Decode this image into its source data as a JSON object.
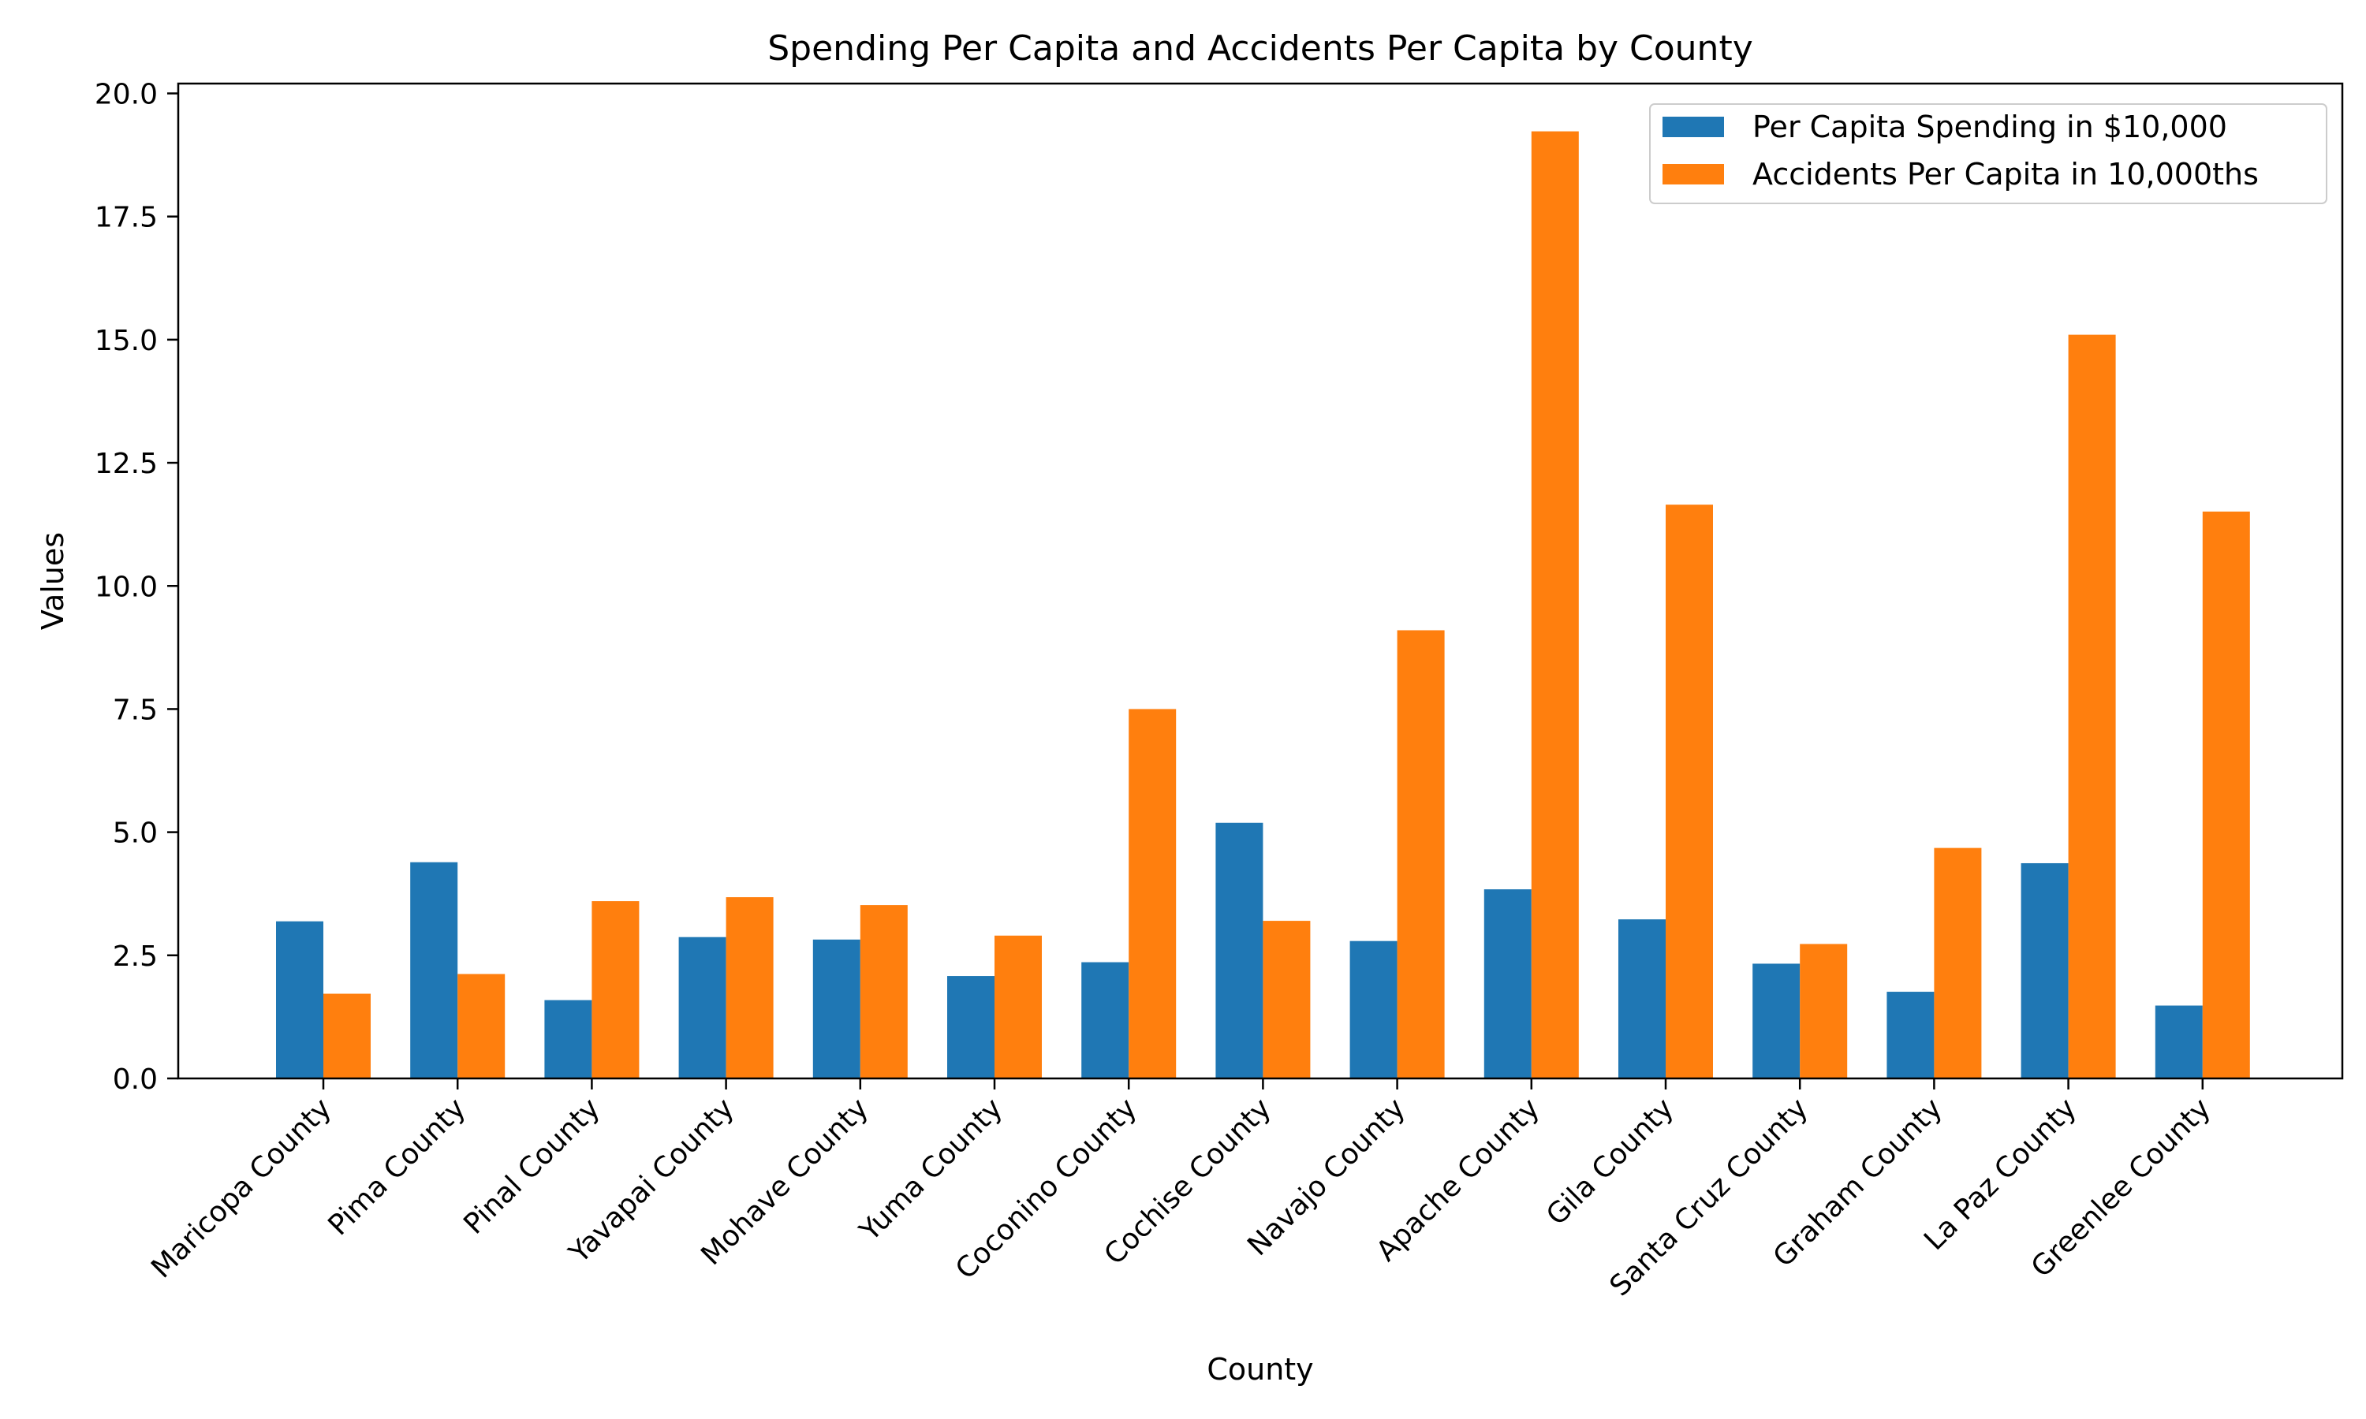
{
  "chart_data": {
    "type": "bar",
    "title": "Spending Per Capita and Accidents Per Capita by County",
    "xlabel": "County",
    "ylabel": "Values",
    "ylim": [
      0,
      20.2
    ],
    "yticks": [
      "0.0",
      "2.5",
      "5.0",
      "7.5",
      "10.0",
      "12.5",
      "15.0",
      "17.5",
      "20.0"
    ],
    "grid": false,
    "legend_position": "top-right",
    "categories": [
      "Maricopa County",
      "Pima County",
      "Pinal County",
      "Yavapai County",
      "Mohave County",
      "Yuma County",
      "Coconino County",
      "Cochise County",
      "Navajo County",
      "Apache County",
      "Gila County",
      "Santa Cruz County",
      "Graham County",
      "La Paz County",
      "Greenlee County"
    ],
    "series": [
      {
        "name": "Per Capita Spending in $10,000",
        "color": "#1f77b4",
        "values": [
          3.19,
          4.39,
          1.59,
          2.87,
          2.82,
          2.08,
          2.36,
          5.19,
          2.79,
          3.84,
          3.23,
          2.33,
          1.76,
          4.37,
          1.48
        ]
      },
      {
        "name": "Accidents Per Capita in 10,000ths",
        "color": "#ff7f0e",
        "values": [
          1.72,
          2.12,
          3.6,
          3.68,
          3.52,
          2.9,
          7.5,
          3.2,
          9.1,
          19.23,
          11.65,
          2.73,
          4.68,
          15.1,
          11.51
        ]
      }
    ]
  }
}
